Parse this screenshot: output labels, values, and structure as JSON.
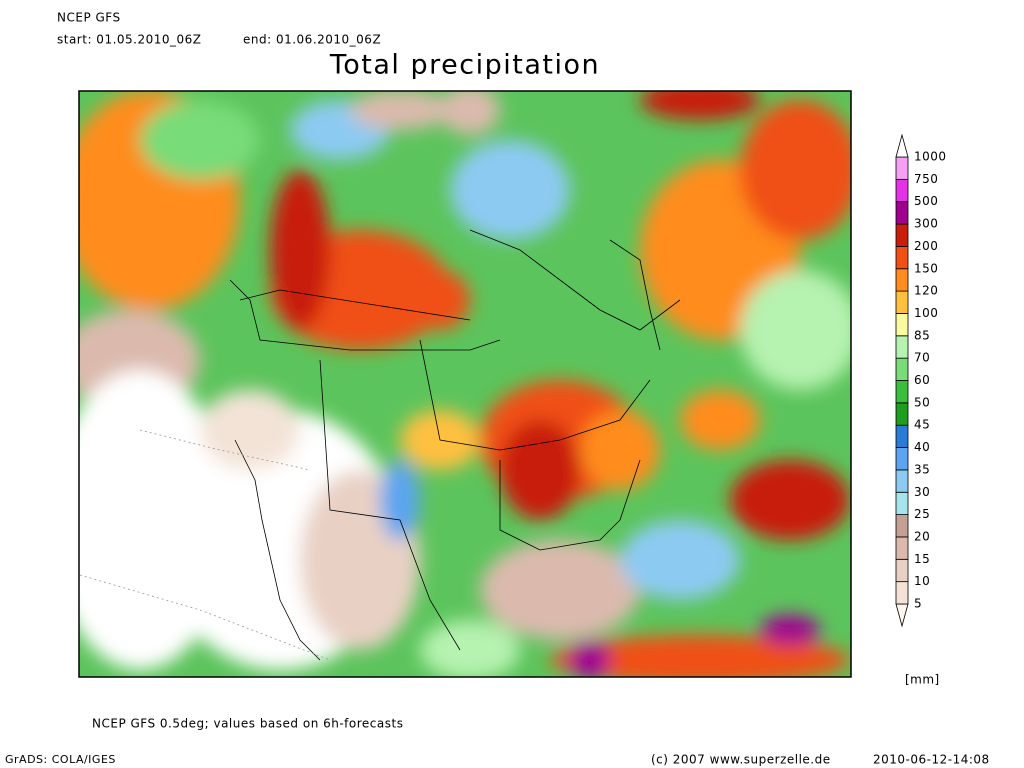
{
  "header": {
    "model": "NCEP GFS",
    "start": "start: 01.05.2010_06Z",
    "end": "end: 01.06.2010_06Z",
    "title": "Total precipitation"
  },
  "legend": {
    "unit": "[mm]",
    "levels": [
      {
        "label": "5",
        "color": "#f3e3d7"
      },
      {
        "label": "10",
        "color": "#e9d0c4"
      },
      {
        "label": "15",
        "color": "#dbbaad"
      },
      {
        "label": "20",
        "color": "#c4a094"
      },
      {
        "label": "25",
        "color": "#a6e4ee"
      },
      {
        "label": "30",
        "color": "#8ccaf2"
      },
      {
        "label": "35",
        "color": "#5ca4f0"
      },
      {
        "label": "40",
        "color": "#2a7ad8"
      },
      {
        "label": "45",
        "color": "#1e9e1e"
      },
      {
        "label": "50",
        "color": "#3cbe3c"
      },
      {
        "label": "60",
        "color": "#78dc78"
      },
      {
        "label": "70",
        "color": "#b6f2b0"
      },
      {
        "label": "85",
        "color": "#fafaa0"
      },
      {
        "label": "100",
        "color": "#ffc040"
      },
      {
        "label": "120",
        "color": "#ff8c1e"
      },
      {
        "label": "150",
        "color": "#f05014"
      },
      {
        "label": "200",
        "color": "#c81e0a"
      },
      {
        "label": "300",
        "color": "#a00090"
      },
      {
        "label": "500",
        "color": "#e632e6"
      },
      {
        "label": "750",
        "color": "#f5a0f5"
      },
      {
        "label": "1000",
        "color": "#ffffff"
      }
    ]
  },
  "footer": {
    "note": "NCEP GFS 0.5deg; values based on 6h-forecasts",
    "software": "GrADS: COLA/IGES",
    "copyright": "(c) 2007 www.superzelle.de",
    "timestamp": "2010-06-12-14:08"
  }
}
